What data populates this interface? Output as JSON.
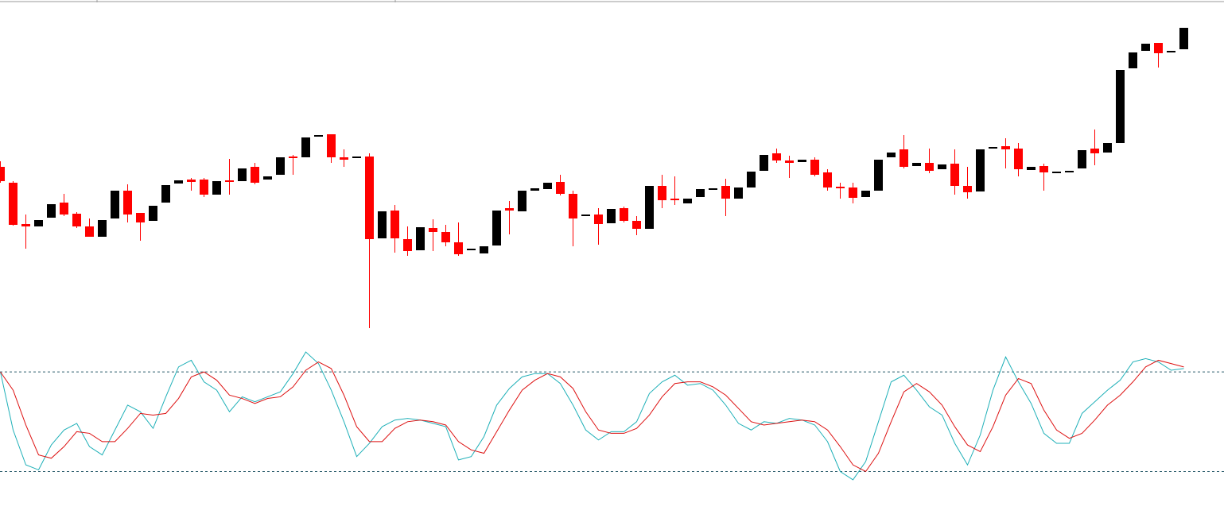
{
  "chart_data": [
    {
      "type": "candlestick",
      "up_color": "#000000",
      "down_color": "#ff0000",
      "ylim": [
        30,
        450
      ],
      "open": [
        240,
        220,
        168,
        165,
        176,
        195,
        181,
        165,
        152,
        175,
        210,
        182,
        172,
        195,
        219,
        224,
        224,
        205,
        223,
        222,
        240,
        224,
        230,
        253,
        252,
        278,
        281,
        252,
        251,
        253,
        150,
        185,
        149,
        135,
        163,
        158,
        145,
        136,
        131,
        141,
        188,
        184,
        210,
        212,
        221,
        206,
        178,
        180,
        169,
        188,
        172,
        162,
        216,
        200,
        194,
        202,
        212,
        216,
        200,
        214,
        235,
        257,
        248,
        246,
        249,
        233,
        215,
        214,
        202,
        210,
        252,
        262,
        241,
        245,
        237,
        244,
        216,
        209,
        263,
        266,
        263,
        236,
        241,
        233,
        234,
        238,
        263,
        258,
        270,
        364,
        386,
        396,
        385,
        388
      ],
      "high": [
        247,
        222,
        180,
        173,
        193,
        206,
        183,
        175,
        173,
        210,
        218,
        182,
        191,
        217,
        223,
        226,
        226,
        222,
        250,
        238,
        245,
        228,
        252,
        255,
        277,
        280,
        281,
        262,
        253,
        257,
        184,
        192,
        165,
        164,
        174,
        167,
        170,
        137,
        140,
        185,
        197,
        210,
        213,
        220,
        230,
        210,
        180,
        188,
        187,
        190,
        178,
        216,
        230,
        228,
        200,
        212,
        213,
        225,
        214,
        234,
        255,
        263,
        254,
        249,
        252,
        237,
        220,
        220,
        210,
        249,
        258,
        280,
        245,
        263,
        243,
        262,
        240,
        262,
        265,
        276,
        270,
        240,
        244,
        234,
        235,
        261,
        287,
        270,
        362,
        384,
        395,
        396,
        386,
        415
      ],
      "low": [
        220,
        166,
        137,
        165,
        176,
        178,
        163,
        152,
        152,
        175,
        170,
        147,
        172,
        195,
        219,
        210,
        202,
        205,
        205,
        222,
        218,
        224,
        230,
        230,
        252,
        278,
        245,
        240,
        251,
        37,
        150,
        132,
        128,
        135,
        134,
        140,
        128,
        136,
        131,
        141,
        155,
        184,
        210,
        212,
        204,
        140,
        178,
        142,
        169,
        170,
        154,
        162,
        188,
        192,
        194,
        202,
        212,
        178,
        200,
        214,
        235,
        245,
        226,
        246,
        228,
        210,
        200,
        194,
        202,
        210,
        252,
        238,
        241,
        232,
        237,
        205,
        200,
        209,
        263,
        238,
        228,
        236,
        210,
        233,
        234,
        238,
        242,
        258,
        270,
        364,
        386,
        365,
        385,
        388
      ],
      "close": [
        222,
        167,
        165,
        173,
        193,
        180,
        165,
        152,
        173,
        210,
        180,
        170,
        191,
        217,
        223,
        221,
        205,
        222,
        221,
        238,
        220,
        228,
        252,
        251,
        277,
        280,
        252,
        249,
        253,
        149,
        184,
        150,
        134,
        164,
        158,
        145,
        130,
        137,
        140,
        185,
        185,
        210,
        213,
        220,
        206,
        175,
        180,
        168,
        187,
        172,
        162,
        216,
        198,
        198,
        200,
        212,
        213,
        200,
        214,
        234,
        255,
        248,
        245,
        249,
        230,
        214,
        213,
        201,
        210,
        249,
        258,
        240,
        245,
        235,
        243,
        216,
        208,
        262,
        265,
        262,
        237,
        240,
        233,
        234,
        235,
        261,
        257,
        270,
        362,
        384,
        395,
        383,
        386,
        415
      ]
    },
    {
      "type": "line",
      "ylim": [
        0,
        100
      ],
      "levels": [
        20,
        80
      ],
      "series": [
        {
          "color": "#1fb0b8",
          "values": [
            80,
            45,
            24,
            21,
            36,
            45,
            49,
            35,
            30,
            45,
            60,
            56,
            46,
            65,
            83,
            87,
            74,
            69,
            56,
            65,
            62,
            65,
            68,
            79,
            92,
            85,
            69,
            50,
            29,
            37,
            47,
            51,
            52,
            51,
            49,
            47,
            27,
            29,
            41,
            60,
            70,
            77,
            79,
            79,
            73,
            60,
            45,
            39,
            44,
            44,
            50,
            67,
            74,
            78,
            72,
            73,
            69,
            60,
            49,
            45,
            50,
            49,
            52,
            51,
            48,
            38,
            20,
            15,
            26,
            50,
            74,
            78,
            69,
            59,
            54,
            37,
            24,
            42,
            69,
            89,
            74,
            61,
            43,
            37,
            37,
            55,
            62,
            69,
            75,
            86,
            88,
            86,
            81,
            82
          ]
        },
        {
          "color": "#dd1111",
          "values": [
            80,
            69,
            48,
            30,
            28,
            35,
            44,
            43,
            38,
            38,
            46,
            55,
            54,
            55,
            64,
            77,
            80,
            75,
            66,
            64,
            61,
            64,
            65,
            71,
            81,
            86,
            82,
            66,
            47,
            38,
            38,
            46,
            50,
            51,
            50,
            48,
            38,
            33,
            31,
            44,
            57,
            69,
            75,
            79,
            77,
            70,
            56,
            45,
            43,
            43,
            46,
            54,
            65,
            73,
            74,
            74,
            71,
            66,
            58,
            50,
            48,
            49,
            50,
            51,
            50,
            45,
            35,
            24,
            20,
            31,
            50,
            68,
            73,
            68,
            60,
            47,
            36,
            32,
            47,
            66,
            76,
            73,
            57,
            45,
            40,
            43,
            51,
            60,
            66,
            74,
            83,
            87,
            85,
            83
          ]
        }
      ]
    }
  ]
}
